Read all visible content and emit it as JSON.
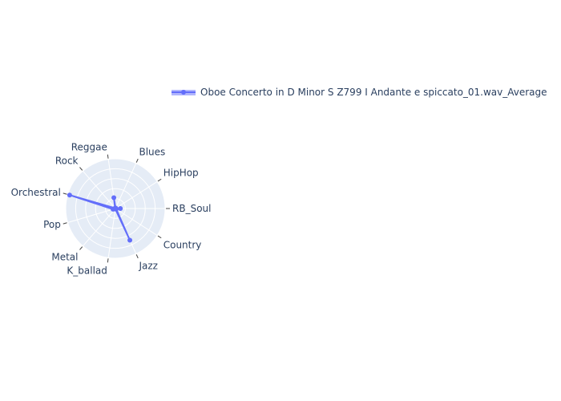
{
  "chart_data": {
    "type": "radar",
    "title": "",
    "categories": [
      "RB_Soul",
      "Country",
      "Jazz",
      "K_ballad",
      "Metal",
      "Pop",
      "Orchestral",
      "Rock",
      "Reggae",
      "Blues",
      "HipHop"
    ],
    "series": [
      {
        "name": "Oboe Concerto in D Minor S Z799 I Andante e spiccato_01.wav_Average",
        "values": [
          0.1,
          0.02,
          0.7,
          0.01,
          0.01,
          0.05,
          0.96,
          0.01,
          0.22,
          0.01,
          0.01
        ],
        "color": "#636efa",
        "fill": "toself"
      }
    ],
    "radial_range": [
      0,
      1
    ],
    "radial_grid_divisions": 5,
    "grid": true,
    "background": "#e5ecf6",
    "legend_position": "top-right"
  }
}
